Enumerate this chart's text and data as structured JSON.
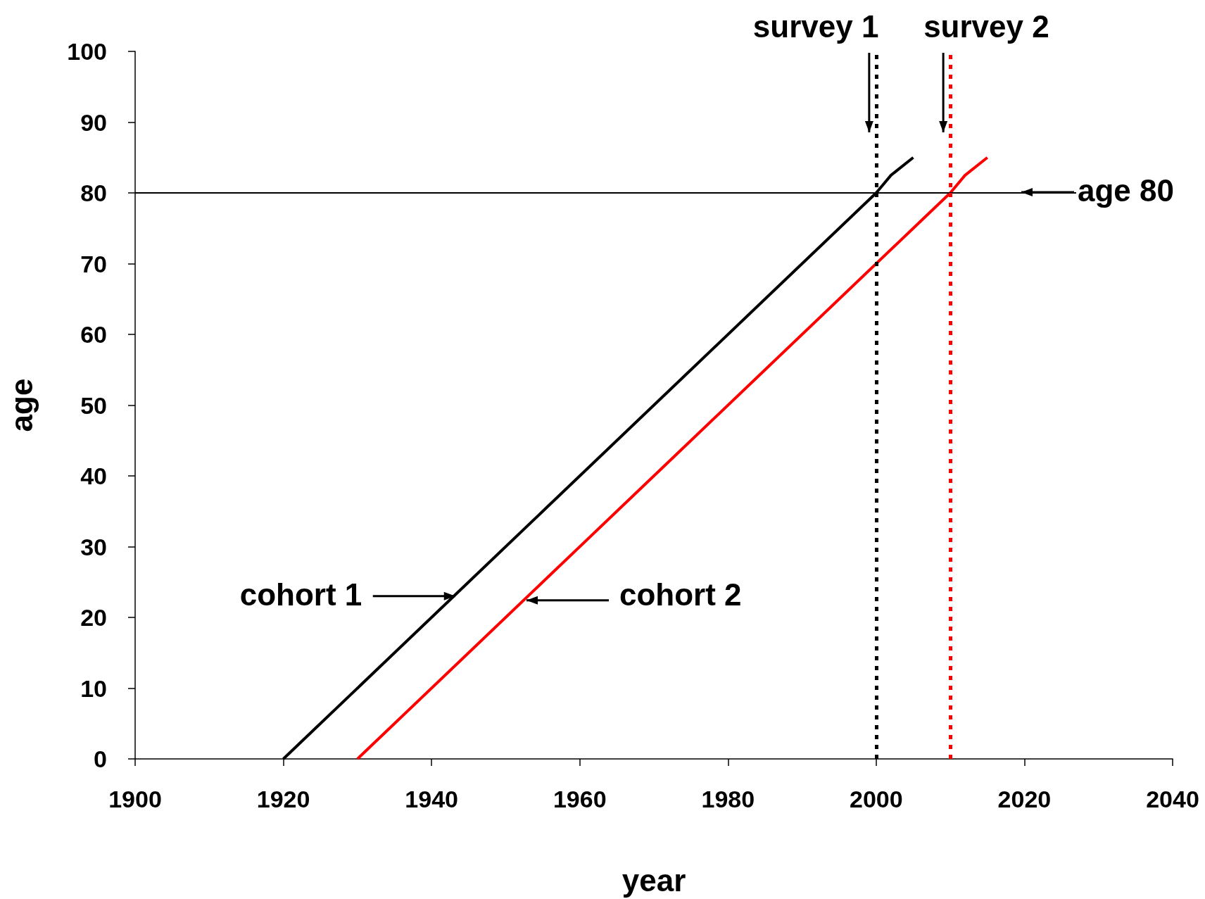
{
  "chart_data": {
    "type": "line",
    "xlabel": "year",
    "ylabel": "age",
    "xlim": [
      1900,
      2040
    ],
    "xticks": [
      1900,
      1920,
      1940,
      1960,
      1980,
      2000,
      2020,
      2040
    ],
    "ylim": [
      0,
      100
    ],
    "yticks": [
      0,
      10,
      20,
      30,
      40,
      50,
      60,
      70,
      80,
      90,
      100
    ],
    "grid": false,
    "marker": "none",
    "line_style": "solid",
    "series": [
      {
        "color": "#000000",
        "x": [
          1920,
          1925,
          1935,
          1945,
          1955,
          1965,
          1975,
          1985,
          1995,
          2000,
          2002,
          2005
        ],
        "values": [
          0,
          5,
          15,
          25,
          35,
          45,
          55,
          65,
          75,
          80,
          82.5,
          85
        ]
      },
      {
        "color": "#ff0000",
        "x": [
          1930,
          1935,
          1945,
          1955,
          1965,
          1975,
          1985,
          1995,
          2005,
          2010,
          2012,
          2015
        ],
        "values": [
          0,
          5,
          15,
          25,
          35,
          45,
          55,
          65,
          75,
          80,
          82.5,
          85
        ]
      }
    ],
    "ref_lines": [
      {
        "axis": "y",
        "value": 80,
        "label": "age 80",
        "color": "#000000",
        "line_style": "solid"
      },
      {
        "axis": "x",
        "value": 2000,
        "label": "survey 1",
        "color": "#000000",
        "line_style": "dashed"
      },
      {
        "axis": "x",
        "value": 2010,
        "label": "survey 2",
        "color": "#ff0000",
        "line_style": "dashed"
      }
    ],
    "annotations": [
      {
        "text": "cohort 1",
        "x": 1943,
        "y": 23
      },
      {
        "text": "cohort 2",
        "x": 1953,
        "y": 23
      }
    ]
  }
}
